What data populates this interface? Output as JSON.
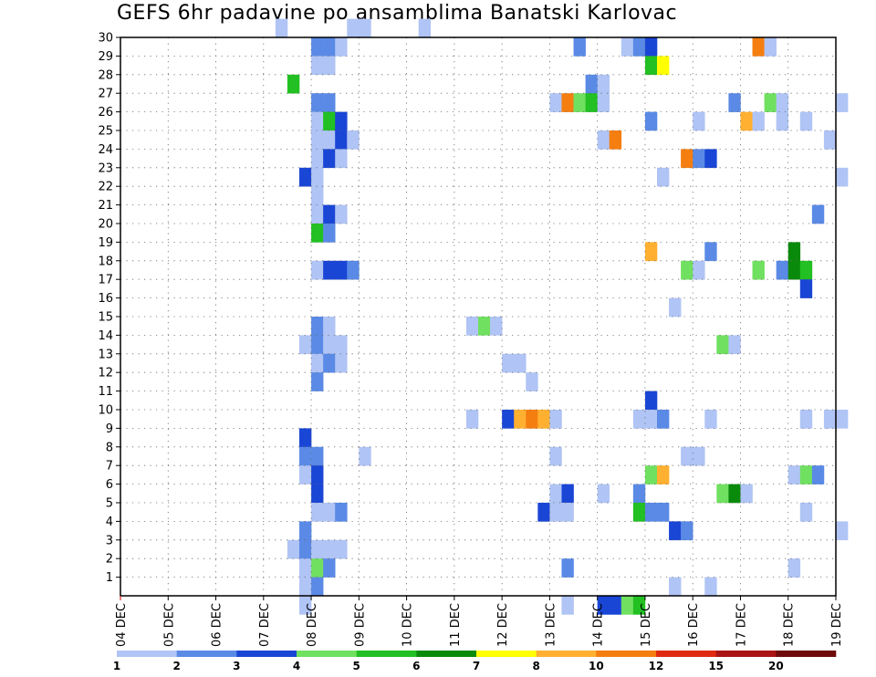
{
  "chart_data": {
    "type": "heatmap",
    "title": "GEFS 6hr padavine po ansamblima Banatski Karlovac",
    "xlabel": "",
    "ylabel": "",
    "x_ticks": [
      "04 DEC",
      "05 DEC",
      "06 DEC",
      "07 DEC",
      "08 DEC",
      "09 DEC",
      "10 DEC",
      "11 DEC",
      "12 DEC",
      "13 DEC",
      "14 DEC",
      "15 DEC",
      "16 DEC",
      "17 DEC",
      "18 DEC",
      "19 DEC"
    ],
    "y_ticks": [
      "1",
      "2",
      "3",
      "4",
      "5",
      "6",
      "7",
      "8",
      "9",
      "10",
      "11",
      "12",
      "13",
      "14",
      "15",
      "16",
      "17",
      "18",
      "19",
      "20",
      "21",
      "22",
      "23",
      "24",
      "25",
      "26",
      "27",
      "28",
      "29",
      "30"
    ],
    "x_unit": "6-hour steps from 04 DEC 00z",
    "y_range": [
      0,
      30
    ],
    "grid": true,
    "legend_position": "bottom",
    "levels": [
      "1",
      "2",
      "3",
      "4",
      "5",
      "6",
      "7",
      "8",
      "10",
      "12",
      "15",
      "20"
    ],
    "level_colors": [
      "#b0c4f5",
      "#5a8ae6",
      "#1a46d6",
      "#70e060",
      "#22c022",
      "#0a8a0a",
      "#ffff00",
      "#ffb030",
      "#f57e10",
      "#e02a10",
      "#aa1414",
      "#6e0a0a"
    ],
    "cells": [
      [
        30,
        13,
        1
      ],
      [
        30,
        19,
        1
      ],
      [
        30,
        20,
        1
      ],
      [
        30,
        25,
        1
      ],
      [
        29,
        16,
        2
      ],
      [
        29,
        17,
        2
      ],
      [
        29,
        18,
        1
      ],
      [
        29,
        38,
        2
      ],
      [
        29,
        42,
        1
      ],
      [
        29,
        43,
        2
      ],
      [
        29,
        44,
        3
      ],
      [
        29,
        53,
        9
      ],
      [
        29,
        54,
        1
      ],
      [
        28,
        16,
        1
      ],
      [
        28,
        17,
        1
      ],
      [
        28,
        44,
        5
      ],
      [
        28,
        45,
        7
      ],
      [
        27,
        14,
        5
      ],
      [
        27,
        39,
        2
      ],
      [
        27,
        40,
        1
      ],
      [
        26,
        16,
        2
      ],
      [
        26,
        17,
        2
      ],
      [
        26,
        36,
        1
      ],
      [
        26,
        37,
        9
      ],
      [
        26,
        38,
        4
      ],
      [
        26,
        39,
        5
      ],
      [
        26,
        40,
        1
      ],
      [
        26,
        51,
        2
      ],
      [
        26,
        54,
        4
      ],
      [
        26,
        55,
        1
      ],
      [
        26,
        60,
        1
      ],
      [
        25,
        16,
        1
      ],
      [
        25,
        17,
        5
      ],
      [
        25,
        18,
        3
      ],
      [
        25,
        44,
        2
      ],
      [
        25,
        48,
        1
      ],
      [
        25,
        52,
        8
      ],
      [
        25,
        53,
        1
      ],
      [
        25,
        55,
        1
      ],
      [
        25,
        57,
        1
      ],
      [
        24,
        16,
        1
      ],
      [
        24,
        17,
        1
      ],
      [
        24,
        18,
        3
      ],
      [
        24,
        19,
        1
      ],
      [
        24,
        40,
        1
      ],
      [
        24,
        41,
        9
      ],
      [
        24,
        59,
        1
      ],
      [
        23,
        16,
        1
      ],
      [
        23,
        17,
        3
      ],
      [
        23,
        18,
        1
      ],
      [
        23,
        47,
        9
      ],
      [
        23,
        48,
        2
      ],
      [
        23,
        49,
        3
      ],
      [
        22,
        15,
        3
      ],
      [
        22,
        16,
        1
      ],
      [
        22,
        45,
        1
      ],
      [
        22,
        60,
        1
      ],
      [
        21,
        16,
        1
      ],
      [
        20,
        16,
        1
      ],
      [
        20,
        17,
        3
      ],
      [
        20,
        18,
        1
      ],
      [
        20,
        58,
        2
      ],
      [
        19,
        16,
        5
      ],
      [
        19,
        17,
        2
      ],
      [
        18,
        44,
        8
      ],
      [
        18,
        49,
        2
      ],
      [
        18,
        56,
        6
      ],
      [
        17,
        16,
        1
      ],
      [
        17,
        17,
        3
      ],
      [
        17,
        18,
        3
      ],
      [
        17,
        19,
        2
      ],
      [
        17,
        47,
        4
      ],
      [
        17,
        48,
        1
      ],
      [
        17,
        53,
        4
      ],
      [
        17,
        55,
        2
      ],
      [
        17,
        56,
        6
      ],
      [
        17,
        57,
        5
      ],
      [
        16,
        57,
        3
      ],
      [
        15,
        46,
        1
      ],
      [
        14,
        16,
        2
      ],
      [
        14,
        17,
        1
      ],
      [
        14,
        29,
        1
      ],
      [
        14,
        30,
        4
      ],
      [
        14,
        31,
        1
      ],
      [
        13,
        15,
        1
      ],
      [
        13,
        16,
        2
      ],
      [
        13,
        17,
        1
      ],
      [
        13,
        18,
        1
      ],
      [
        13,
        50,
        4
      ],
      [
        13,
        51,
        1
      ],
      [
        12,
        16,
        1
      ],
      [
        12,
        17,
        2
      ],
      [
        12,
        18,
        1
      ],
      [
        12,
        32,
        1
      ],
      [
        12,
        33,
        1
      ],
      [
        11,
        16,
        2
      ],
      [
        11,
        34,
        1
      ],
      [
        10,
        44,
        3
      ],
      [
        9,
        29,
        1
      ],
      [
        9,
        32,
        3
      ],
      [
        9,
        33,
        8
      ],
      [
        9,
        34,
        9
      ],
      [
        9,
        35,
        8
      ],
      [
        9,
        36,
        1
      ],
      [
        9,
        43,
        1
      ],
      [
        9,
        44,
        1
      ],
      [
        9,
        45,
        2
      ],
      [
        9,
        49,
        1
      ],
      [
        9,
        57,
        1
      ],
      [
        9,
        59,
        1
      ],
      [
        9,
        60,
        1
      ],
      [
        8,
        15,
        3
      ],
      [
        7,
        15,
        2
      ],
      [
        7,
        16,
        2
      ],
      [
        7,
        20,
        1
      ],
      [
        7,
        36,
        1
      ],
      [
        7,
        47,
        1
      ],
      [
        7,
        48,
        1
      ],
      [
        6,
        15,
        1
      ],
      [
        6,
        16,
        3
      ],
      [
        6,
        44,
        4
      ],
      [
        6,
        45,
        8
      ],
      [
        6,
        56,
        1
      ],
      [
        6,
        57,
        4
      ],
      [
        6,
        58,
        2
      ],
      [
        5,
        16,
        3
      ],
      [
        5,
        36,
        1
      ],
      [
        5,
        37,
        3
      ],
      [
        5,
        40,
        1
      ],
      [
        5,
        43,
        2
      ],
      [
        5,
        50,
        4
      ],
      [
        5,
        51,
        6
      ],
      [
        5,
        52,
        1
      ],
      [
        4,
        16,
        1
      ],
      [
        4,
        17,
        1
      ],
      [
        4,
        18,
        2
      ],
      [
        4,
        35,
        3
      ],
      [
        4,
        36,
        1
      ],
      [
        4,
        37,
        1
      ],
      [
        4,
        43,
        5
      ],
      [
        4,
        44,
        2
      ],
      [
        4,
        45,
        2
      ],
      [
        4,
        57,
        1
      ],
      [
        3,
        15,
        2
      ],
      [
        3,
        46,
        3
      ],
      [
        3,
        47,
        2
      ],
      [
        3,
        60,
        1
      ],
      [
        2,
        14,
        1
      ],
      [
        2,
        15,
        2
      ],
      [
        2,
        16,
        1
      ],
      [
        2,
        17,
        1
      ],
      [
        2,
        18,
        1
      ],
      [
        1,
        15,
        1
      ],
      [
        1,
        16,
        4
      ],
      [
        1,
        17,
        2
      ],
      [
        1,
        37,
        2
      ],
      [
        1,
        56,
        1
      ],
      [
        0,
        15,
        1
      ],
      [
        0,
        16,
        2
      ],
      [
        0,
        46,
        1
      ],
      [
        0,
        49,
        1
      ],
      [
        -1,
        15,
        1
      ],
      [
        -1,
        37,
        1
      ],
      [
        -1,
        40,
        3
      ],
      [
        -1,
        41,
        3
      ],
      [
        -1,
        42,
        4
      ],
      [
        -1,
        43,
        5
      ]
    ]
  }
}
